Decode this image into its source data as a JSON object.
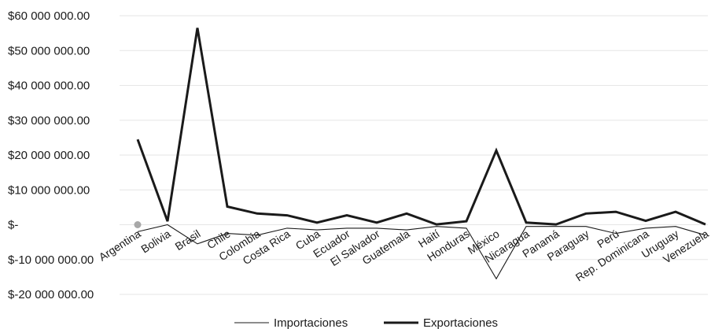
{
  "chart_data": {
    "type": "line",
    "title": "",
    "xlabel": "",
    "ylabel": "",
    "ylim": [
      -20000000,
      60000000
    ],
    "grid": true,
    "legend_position": "bottom",
    "y_ticks": [
      {
        "value": 60000000,
        "label": "$60 000 000.00"
      },
      {
        "value": 50000000,
        "label": "$50 000 000.00"
      },
      {
        "value": 40000000,
        "label": "$40 000 000.00"
      },
      {
        "value": 30000000,
        "label": "$30 000 000.00"
      },
      {
        "value": 20000000,
        "label": "$20 000 000.00"
      },
      {
        "value": 10000000,
        "label": "$10 000 000.00"
      },
      {
        "value": 0,
        "label": "$-"
      },
      {
        "value": -10000000,
        "label": "$-10 000 000.00"
      },
      {
        "value": -20000000,
        "label": "$-20 000 000.00"
      }
    ],
    "categories": [
      "Argentina",
      "Bolivia",
      "Brasil",
      "Chile",
      "Colombia",
      "Costa Rica",
      "Cuba",
      "Ecuador",
      "El Salvador",
      "Guatemala",
      "Haití",
      "Honduras",
      "México",
      "Nicaragua",
      "Panamá",
      "Paraguay",
      "Perú",
      "Rep. Dominicana",
      "Uruguay",
      "Venezuela"
    ],
    "series": [
      {
        "name": "Importaciones",
        "color": "#1a1a1a",
        "values": [
          -2000000,
          0,
          -5500000,
          -2500000,
          -3000000,
          -1000000,
          -1500000,
          -1000000,
          -1000000,
          -1500000,
          -500000,
          -1000000,
          -15500000,
          -500000,
          -500000,
          -500000,
          -2500000,
          -1000000,
          -500000,
          -3000000
        ]
      },
      {
        "name": "Exportaciones",
        "color": "#1a1a1a",
        "values": [
          24500000,
          1000000,
          56500000,
          5200000,
          3200000,
          2700000,
          600000,
          2700000,
          600000,
          3200000,
          100000,
          1000000,
          21300000,
          600000,
          100000,
          3200000,
          3700000,
          1100000,
          3700000,
          100000
        ]
      }
    ],
    "marker": {
      "category": "Argentina",
      "value": 0,
      "color": "#a8a8a8"
    }
  }
}
